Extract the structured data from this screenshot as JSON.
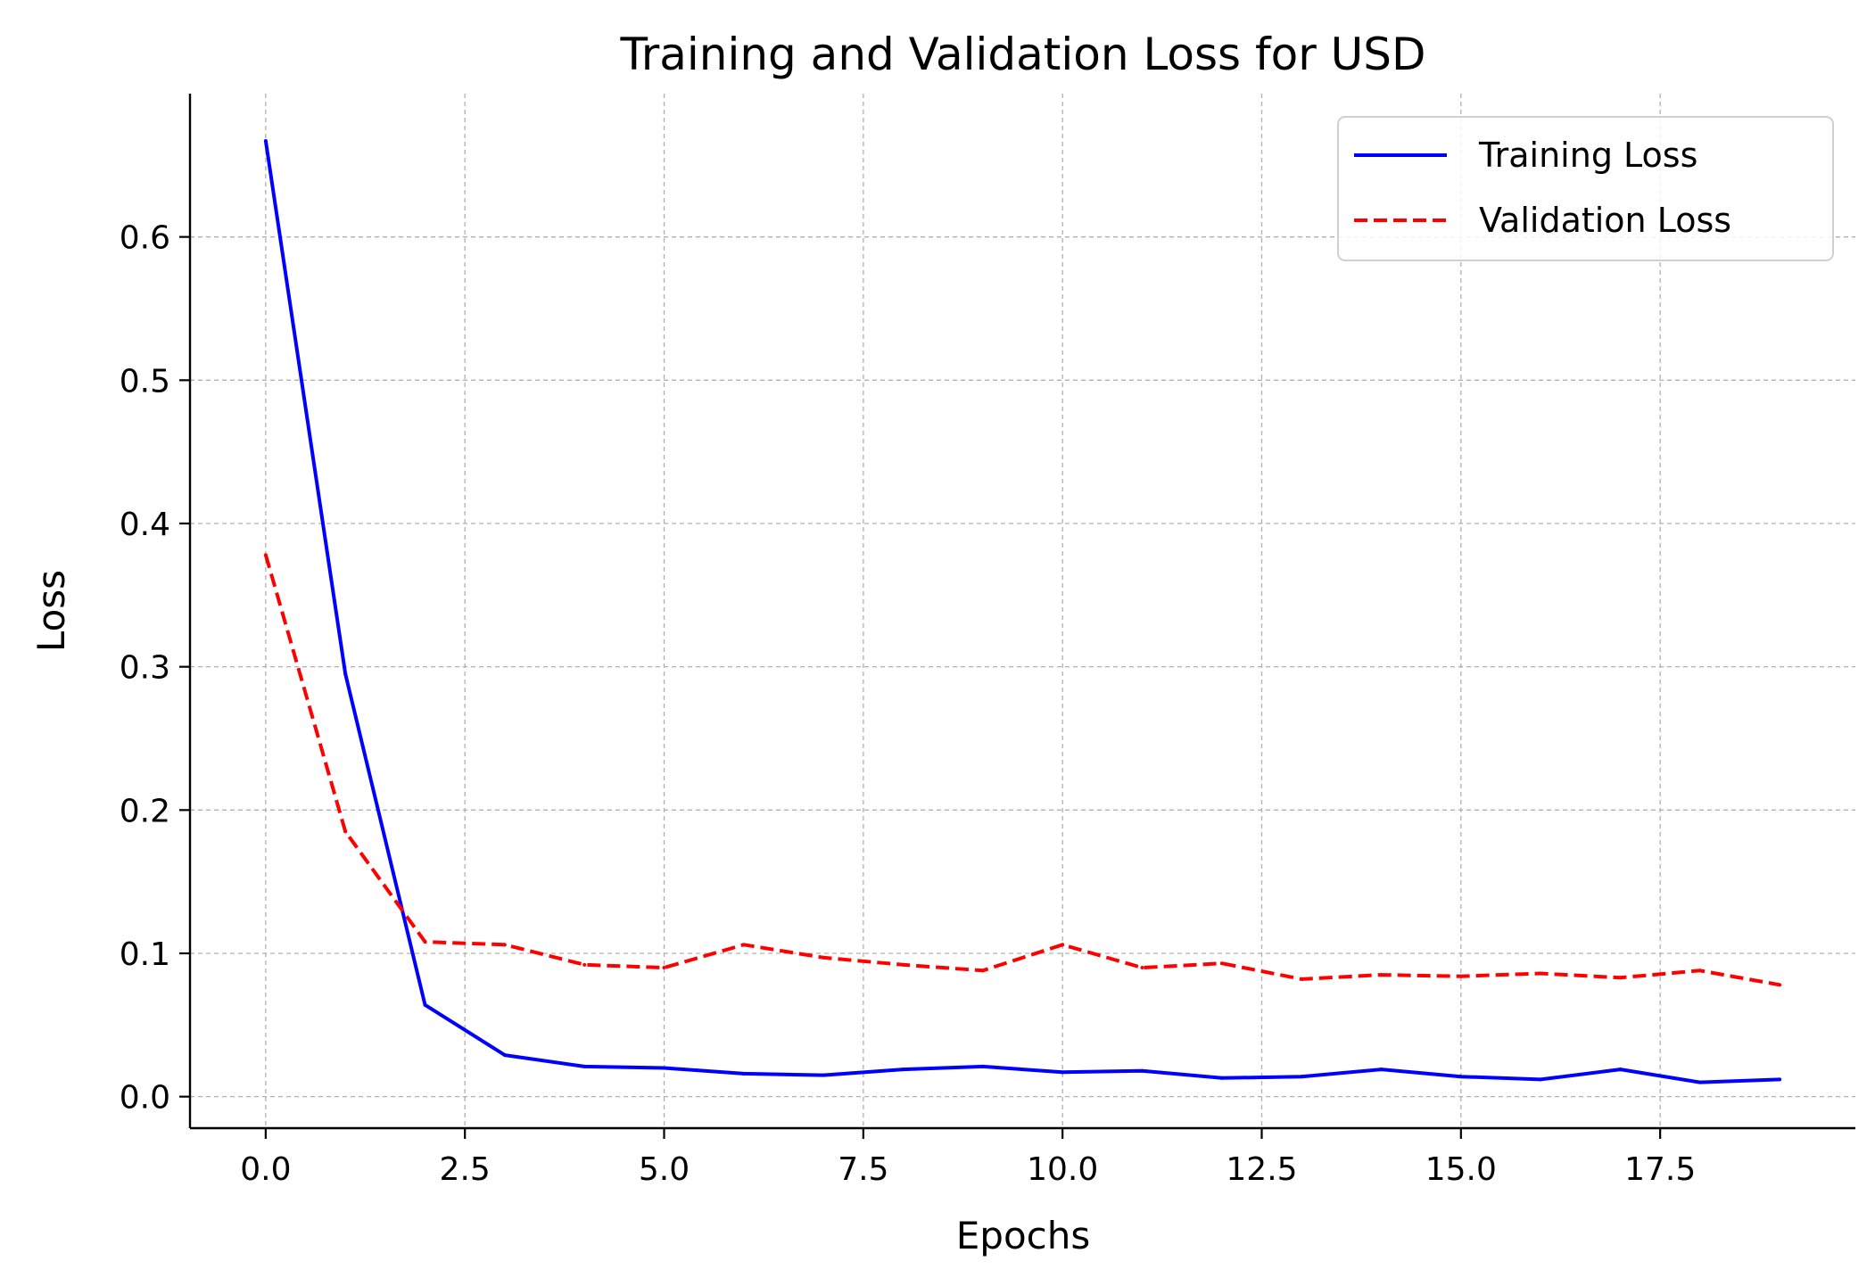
{
  "chart_data": {
    "type": "line",
    "title": "Training and Validation Loss for USD",
    "xlabel": "Epochs",
    "ylabel": "Loss",
    "xlim": [
      -0.95,
      19.95
    ],
    "ylim": [
      -0.022,
      0.7
    ],
    "x": [
      0,
      1,
      2,
      3,
      4,
      5,
      6,
      7,
      8,
      9,
      10,
      11,
      12,
      13,
      14,
      15,
      16,
      17,
      18,
      19
    ],
    "xticks": [
      0.0,
      2.5,
      5.0,
      7.5,
      10.0,
      12.5,
      15.0,
      17.5
    ],
    "xtick_labels": [
      "0.0",
      "2.5",
      "5.0",
      "7.5",
      "10.0",
      "12.5",
      "15.0",
      "17.5"
    ],
    "yticks": [
      0.0,
      0.1,
      0.2,
      0.3,
      0.4,
      0.5,
      0.6
    ],
    "ytick_labels": [
      "0.0",
      "0.1",
      "0.2",
      "0.3",
      "0.4",
      "0.5",
      "0.6"
    ],
    "grid": true,
    "legend_position": "top-right",
    "series": [
      {
        "name": "Training Loss",
        "color": "#0000ff",
        "style": "solid",
        "values": [
          0.667,
          0.295,
          0.064,
          0.029,
          0.021,
          0.02,
          0.016,
          0.015,
          0.019,
          0.021,
          0.017,
          0.018,
          0.013,
          0.014,
          0.019,
          0.014,
          0.012,
          0.019,
          0.01,
          0.012
        ]
      },
      {
        "name": "Validation Loss",
        "color": "#ff0000",
        "style": "dashed",
        "values": [
          0.378,
          0.185,
          0.108,
          0.106,
          0.092,
          0.09,
          0.106,
          0.097,
          0.092,
          0.088,
          0.106,
          0.09,
          0.093,
          0.082,
          0.085,
          0.084,
          0.086,
          0.083,
          0.088,
          0.078
        ]
      }
    ]
  }
}
